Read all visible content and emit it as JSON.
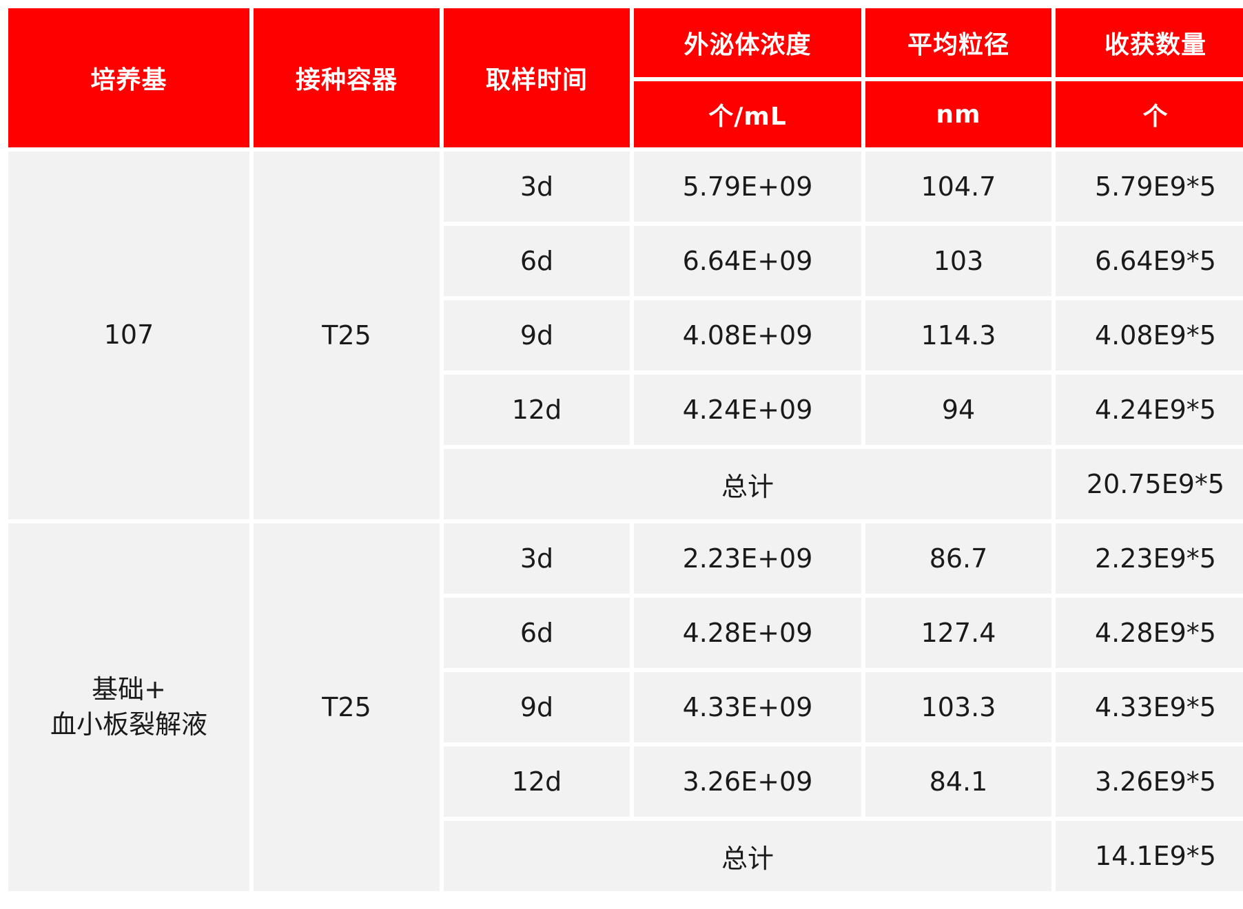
{
  "table": {
    "headers": {
      "medium": "培养基",
      "container": "接种容器",
      "time": "取样时间",
      "concentration": "外泌体浓度",
      "diameter": "平均粒径",
      "harvest": "收获数量"
    },
    "units": {
      "concentration": "个/mL",
      "diameter": "nm",
      "harvest": "个"
    },
    "groups": [
      {
        "medium": "107",
        "container": "T25",
        "rows": [
          {
            "time": "3d",
            "concentration": "5.79E+09",
            "diameter": "104.7",
            "harvest": "5.79E9*5"
          },
          {
            "time": "6d",
            "concentration": "6.64E+09",
            "diameter": "103",
            "harvest": "6.64E9*5"
          },
          {
            "time": "9d",
            "concentration": "4.08E+09",
            "diameter": "114.3",
            "harvest": "4.08E9*5"
          },
          {
            "time": "12d",
            "concentration": "4.24E+09",
            "diameter": "94",
            "harvest": "4.24E9*5"
          }
        ],
        "total_label": "总计",
        "total_value": "20.75E9*5"
      },
      {
        "medium": "基础+\n血小板裂解液",
        "container": "T25",
        "rows": [
          {
            "time": "3d",
            "concentration": "2.23E+09",
            "diameter": "86.7",
            "harvest": "2.23E9*5"
          },
          {
            "time": "6d",
            "concentration": "4.28E+09",
            "diameter": "127.4",
            "harvest": "4.28E9*5"
          },
          {
            "time": "9d",
            "concentration": "4.33E+09",
            "diameter": "103.3",
            "harvest": "4.33E9*5"
          },
          {
            "time": "12d",
            "concentration": "3.26E+09",
            "diameter": "84.1",
            "harvest": "3.26E9*5"
          }
        ],
        "total_label": "总计",
        "total_value": "14.1E9*5"
      }
    ]
  }
}
